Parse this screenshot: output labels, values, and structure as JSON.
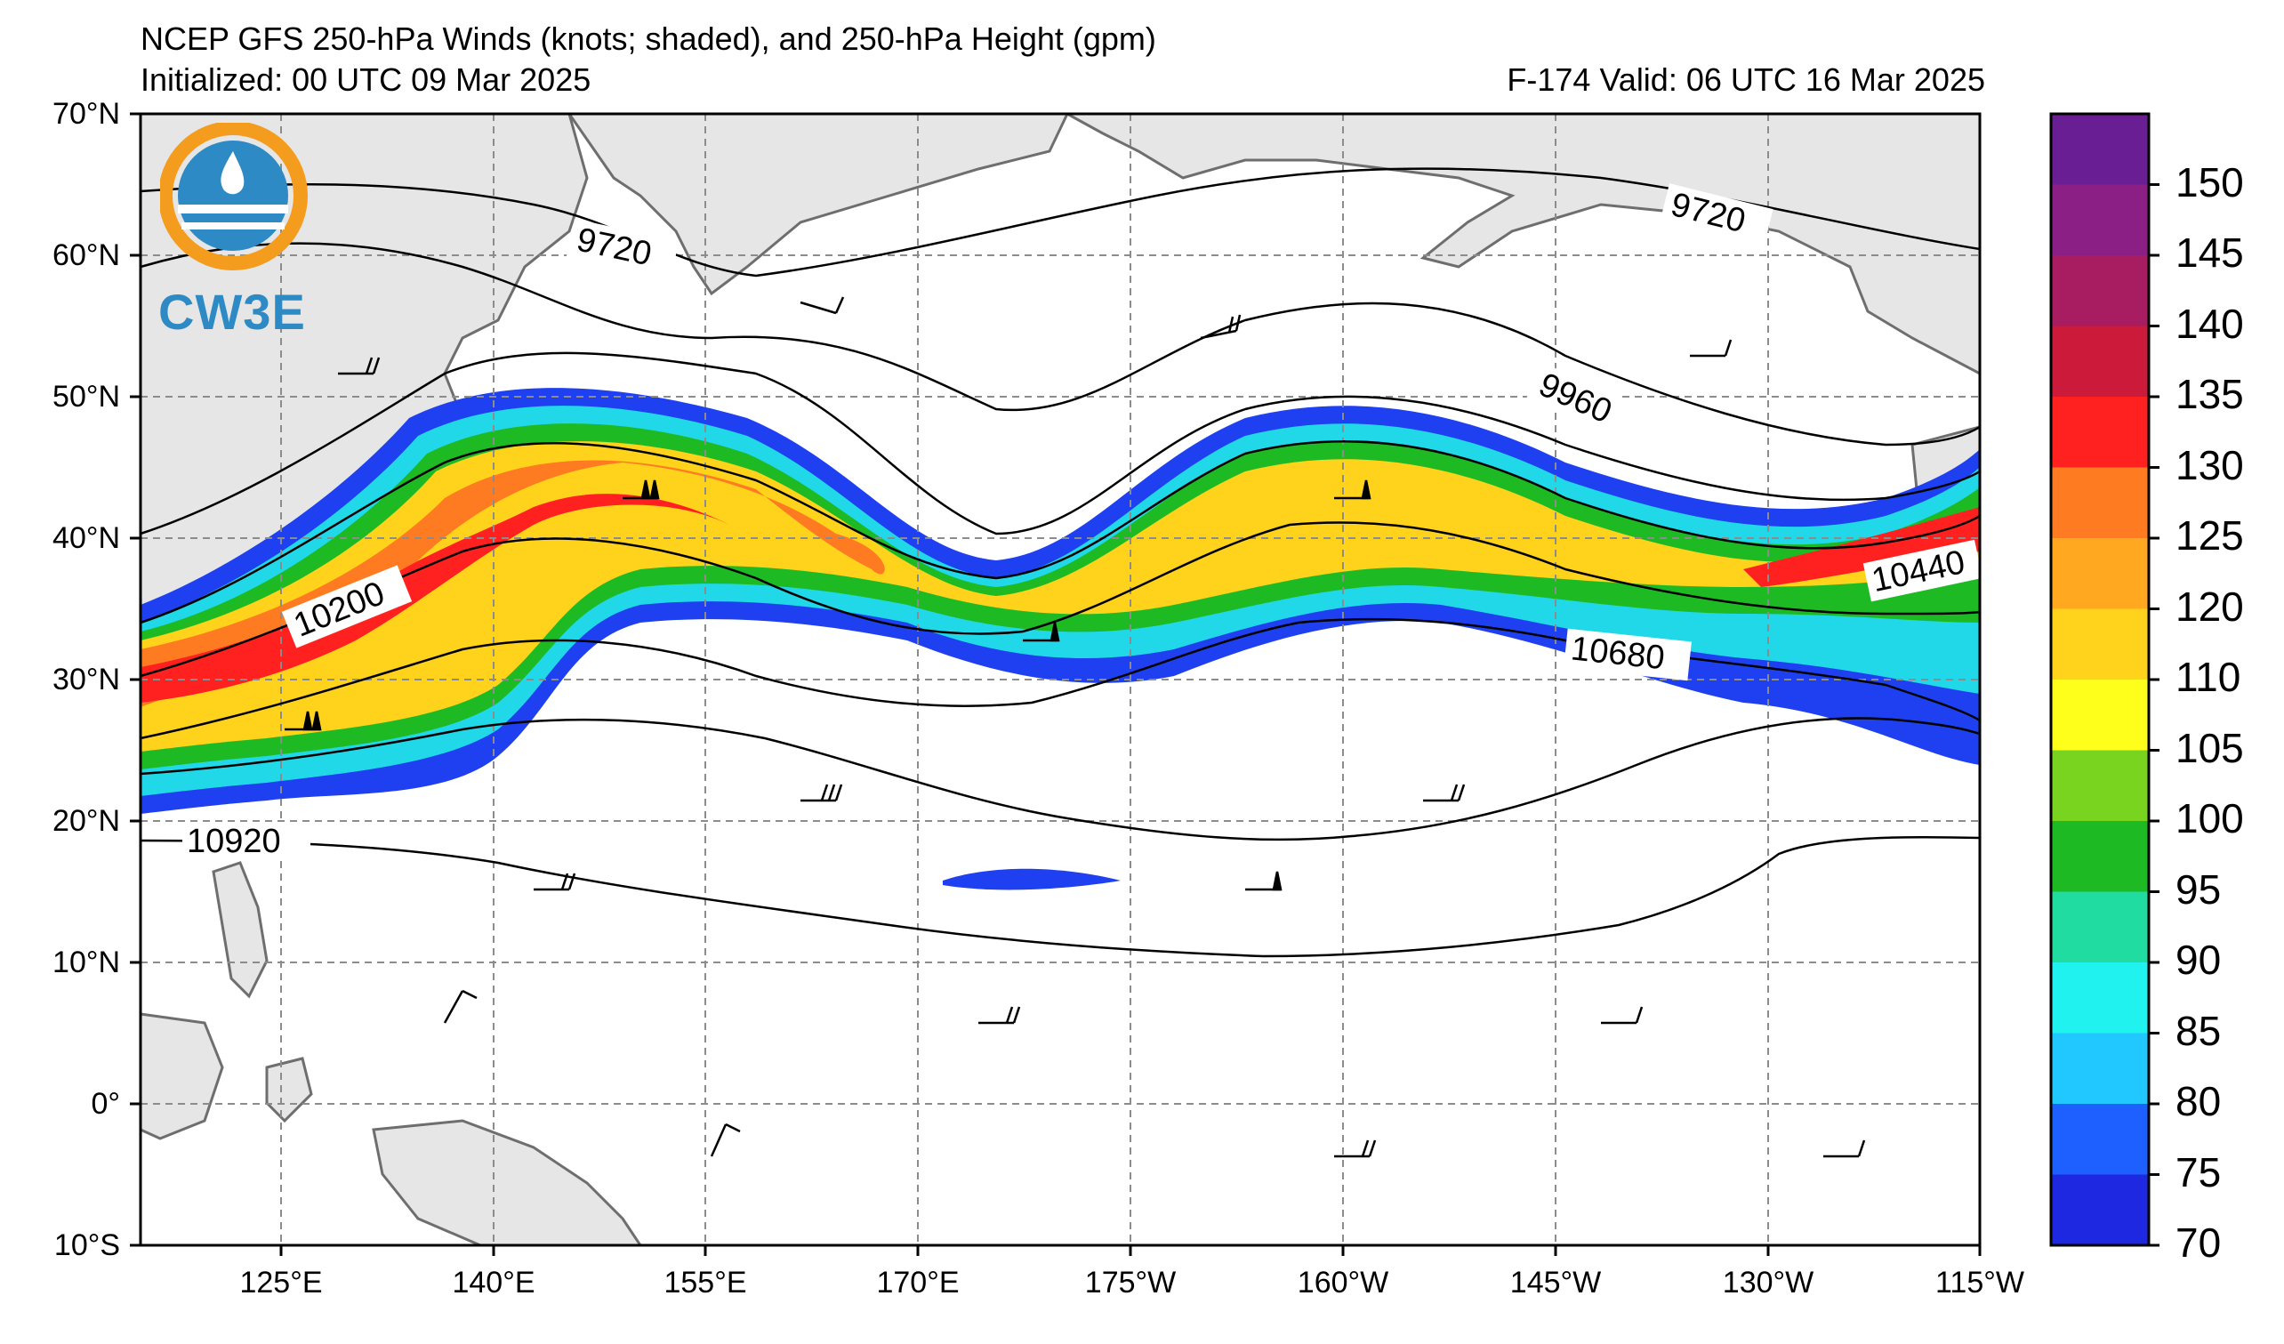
{
  "header": {
    "title_line1": "NCEP GFS 250-hPa Winds (knots; shaded), and 250-hPa Height (gpm)",
    "title_line2": "Initialized: 00 UTC 09 Mar 2025",
    "title_right": "F-174  Valid: 06 UTC 16 Mar 2025"
  },
  "logo": {
    "text": "CW3E",
    "icon": "cw3e-logo-icon"
  },
  "map": {
    "lat_labels": [
      "70°N",
      "60°N",
      "50°N",
      "40°N",
      "30°N",
      "20°N",
      "10°N",
      "0°",
      "10°S"
    ],
    "lon_labels": [
      "125°E",
      "140°E",
      "155°E",
      "170°E",
      "175°W",
      "160°W",
      "145°W",
      "130°W",
      "115°W"
    ],
    "land_color": "#e6e6e6",
    "coast_color": "#707070",
    "grid_style": "dashed",
    "height_contour_labels": [
      "9720",
      "9720",
      "9960",
      "10200",
      "10440",
      "10680",
      "10920"
    ]
  },
  "colorbar": {
    "labels": [
      "150",
      "145",
      "140",
      "135",
      "130",
      "125",
      "120",
      "110",
      "105",
      "100",
      "95",
      "90",
      "85",
      "80",
      "75",
      "70"
    ],
    "colors": [
      "#6a1e94",
      "#8c1f86",
      "#a81c62",
      "#cc1a3a",
      "#ff2020",
      "#ff7b21",
      "#ffa820",
      "#ffd21c",
      "#ffff1c",
      "#78d41e",
      "#1eba24",
      "#20dca0",
      "#20f2ef",
      "#20c8ff",
      "#1e60ff",
      "#1e28e0"
    ]
  }
}
